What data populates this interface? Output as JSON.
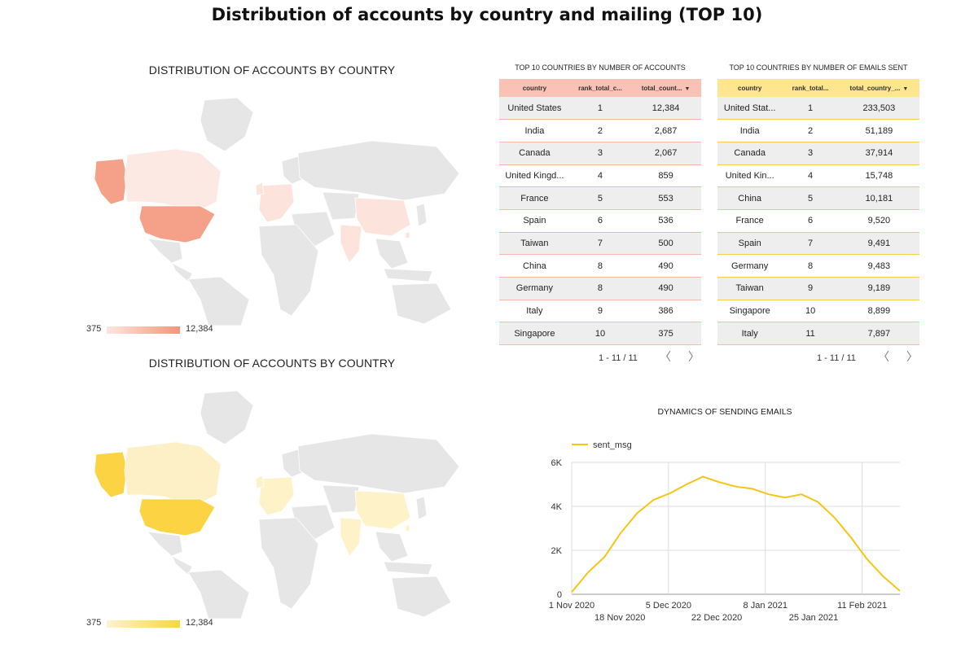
{
  "page": {
    "title": "Distribution of accounts by country and mailing (TOP 10)"
  },
  "map_accounts": {
    "title": "DISTRIBUTION OF ACCOUNTS BY COUNTRY",
    "legend_min": "375",
    "legend_max": "12,384",
    "color_low": "#fde6df",
    "color_high": "#f4957a"
  },
  "map_emails": {
    "title": "DISTRIBUTION OF ACCOUNTS BY COUNTRY",
    "legend_min": "375",
    "legend_max": "12,384",
    "color_low": "#fdf3cf",
    "color_high": "#fcd443"
  },
  "table_accounts": {
    "title": "TOP 10 COUNTRIES BY NUMBER OF ACCOUNTS",
    "headers": [
      "country",
      "rank_total_c...",
      "total_count..."
    ],
    "rows": [
      [
        "United States",
        "1",
        "12,384"
      ],
      [
        "India",
        "2",
        "2,687"
      ],
      [
        "Canada",
        "3",
        "2,067"
      ],
      [
        "United Kingd...",
        "4",
        "859"
      ],
      [
        "France",
        "5",
        "553"
      ],
      [
        "Spain",
        "6",
        "536"
      ],
      [
        "Taiwan",
        "7",
        "500"
      ],
      [
        "China",
        "8",
        "490"
      ],
      [
        "Germany",
        "8",
        "490"
      ],
      [
        "Italy",
        "9",
        "386"
      ],
      [
        "Singapore",
        "10",
        "375"
      ]
    ],
    "pagination": "1 - 11 / 11"
  },
  "table_emails": {
    "title": "TOP 10 COUNTRIES BY NUMBER OF EMAILS SENT",
    "headers": [
      "country",
      "rank_total...",
      "total_country_..."
    ],
    "rows": [
      [
        "United Stat...",
        "1",
        "233,503"
      ],
      [
        "India",
        "2",
        "51,189"
      ],
      [
        "Canada",
        "3",
        "37,914"
      ],
      [
        "United Kin...",
        "4",
        "15,748"
      ],
      [
        "China",
        "5",
        "10,181"
      ],
      [
        "France",
        "6",
        "9,520"
      ],
      [
        "Spain",
        "7",
        "9,491"
      ],
      [
        "Germany",
        "8",
        "9,483"
      ],
      [
        "Taiwan",
        "9",
        "9,189"
      ],
      [
        "Singapore",
        "10",
        "8,899"
      ],
      [
        "Italy",
        "11",
        "7,897"
      ]
    ],
    "pagination": "1 - 11 / 11"
  },
  "icons": {
    "sort": "sort-desc-icon",
    "prev": "chevron-left-icon",
    "next": "chevron-right-icon"
  },
  "line_chart": {
    "title": "DYNAMICS OF SENDING EMAILS",
    "color": "#f5c518"
  },
  "chart_data": {
    "type": "line",
    "title": "DYNAMICS OF SENDING EMAILS",
    "series": [
      {
        "name": "sent_msg",
        "values": [
          100,
          1000,
          1700,
          2800,
          3700,
          4300,
          4600,
          5000,
          5350,
          5100,
          4900,
          4800,
          4550,
          4400,
          4550,
          4200,
          3500,
          2600,
          1600,
          800,
          150
        ]
      }
    ],
    "x": [
      "2020-11-01",
      "2020-11-06",
      "2020-11-11",
      "2020-11-16",
      "2020-11-21",
      "2020-11-26",
      "2020-12-01",
      "2020-12-06",
      "2020-12-11",
      "2020-12-16",
      "2020-12-21",
      "2020-12-26",
      "2020-12-31",
      "2021-01-05",
      "2021-01-10",
      "2021-01-15",
      "2021-01-20",
      "2021-01-25",
      "2021-01-30",
      "2021-02-04",
      "2021-02-09"
    ],
    "x_tick_labels_row1": [
      "1 Nov 2020",
      "5 Dec 2020",
      "8 Jan 2021",
      "11 Feb 2021"
    ],
    "x_tick_labels_row2": [
      "18 Nov 2020",
      "22 Dec 2020",
      "25 Jan 2021"
    ],
    "y_tick_labels": [
      "0",
      "2K",
      "4K",
      "6K"
    ],
    "ylim": [
      0,
      6000
    ],
    "grid": true,
    "legend": "top-left"
  }
}
